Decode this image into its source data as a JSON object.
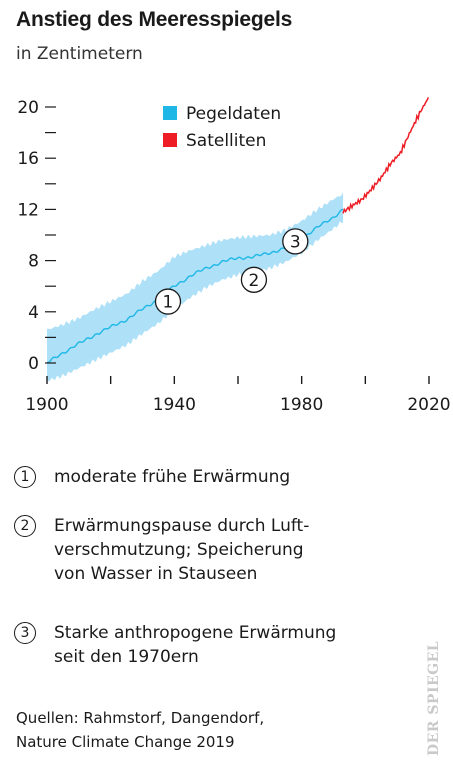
{
  "header": {
    "title": "Anstieg des Meeresspiegels",
    "subtitle": "in Zentimetern"
  },
  "colors": {
    "tide_line": "#1fb8e6",
    "tide_band": "#aee0f8",
    "satellite": "#ee1c24",
    "axis": "#1a1a1a"
  },
  "chart_data": {
    "type": "line",
    "ylabel_unit": "in Zentimetern",
    "xlim": [
      1900,
      2020
    ],
    "ylim": [
      0,
      20
    ],
    "x_ticks": [
      1900,
      1940,
      1980,
      2020
    ],
    "y_ticks": [
      0,
      4,
      8,
      12,
      16,
      20
    ],
    "grid": false,
    "legend_position": "top",
    "legend": [
      "Pegeldaten",
      "Satelliten"
    ],
    "series": [
      {
        "name": "Pegeldaten",
        "x": [
          1900,
          1905,
          1910,
          1915,
          1920,
          1925,
          1930,
          1935,
          1940,
          1945,
          1950,
          1955,
          1960,
          1965,
          1970,
          1975,
          1980,
          1985,
          1990,
          1993
        ],
        "y": [
          0.0,
          0.8,
          1.5,
          2.2,
          2.8,
          3.4,
          4.2,
          5.0,
          6.0,
          6.8,
          7.4,
          7.9,
          8.2,
          8.3,
          8.6,
          9.0,
          9.7,
          10.6,
          11.4,
          12.0
        ],
        "lower": [
          -1.4,
          -1.0,
          -0.4,
          0.2,
          0.8,
          1.4,
          2.3,
          3.1,
          4.2,
          5.1,
          5.9,
          6.5,
          6.9,
          7.1,
          7.4,
          7.9,
          8.6,
          9.6,
          10.5,
          11.1
        ],
        "upper": [
          2.6,
          3.0,
          3.5,
          4.2,
          4.8,
          5.4,
          6.4,
          7.2,
          8.3,
          8.8,
          9.2,
          9.6,
          9.8,
          9.9,
          10.0,
          10.4,
          11.1,
          12.0,
          12.8,
          13.2
        ]
      },
      {
        "name": "Satelliten",
        "x": [
          1993,
          1996,
          1999,
          2002,
          2005,
          2008,
          2011,
          2014,
          2017,
          2020
        ],
        "y": [
          11.8,
          12.3,
          12.8,
          13.6,
          14.5,
          15.6,
          16.4,
          18.0,
          19.5,
          20.8
        ]
      }
    ],
    "annotations": [
      {
        "label": "1",
        "x": 1938,
        "y": 4.8
      },
      {
        "label": "2",
        "x": 1965,
        "y": 6.5
      },
      {
        "label": "3",
        "x": 1978,
        "y": 9.5
      }
    ]
  },
  "notes": [
    {
      "num": "1",
      "lines": [
        "moderate frühe Erwärmung"
      ]
    },
    {
      "num": "2",
      "lines": [
        "Erwärmungspause durch Luft-",
        "verschmutzung; Speicherung",
        "von Wasser in Stauseen"
      ]
    },
    {
      "num": "3",
      "lines": [
        "Starke anthropogene Erwärmung",
        "seit den 1970ern"
      ]
    }
  ],
  "source": {
    "line1": "Quellen: Rahmstorf, Dangendorf,",
    "line2": "Nature Climate Change 2019"
  },
  "watermark": "DER SPIEGEL"
}
